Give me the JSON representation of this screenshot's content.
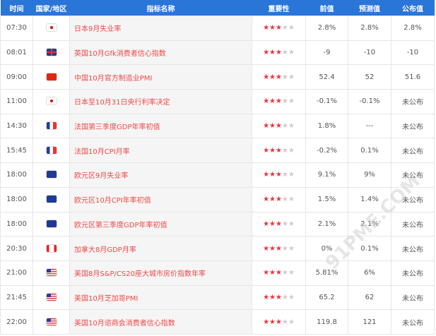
{
  "headers": [
    "时间",
    "国家/地区",
    "指标名称",
    "重要性",
    "前值",
    "预测值",
    "公布值"
  ],
  "colors": {
    "header": "#2a75d8",
    "name": "#f04848",
    "star_on": "#f0303a",
    "star_off": "#cccccc"
  },
  "watermark": "91PME.COM 汇金网",
  "rows": [
    {
      "time": "07:30",
      "flag": "japan",
      "name": "日本9月失业率",
      "stars": 3,
      "prev": "2.8%",
      "forecast": "2.8%",
      "actual": "2.8%"
    },
    {
      "time": "08:01",
      "flag": "uk",
      "name": "英国10月Gfk消费者信心指数",
      "stars": 3,
      "prev": "-9",
      "forecast": "-10",
      "actual": "-10"
    },
    {
      "time": "09:00",
      "flag": "china",
      "name": "中国10月官方制造业PMI",
      "stars": 3,
      "prev": "52.4",
      "forecast": "52",
      "actual": "51.6"
    },
    {
      "time": "11:00",
      "flag": "japan",
      "name": "日本至10月31日央行利率决定",
      "stars": 3,
      "prev": "-0.1%",
      "forecast": "-0.1%",
      "actual": "未公布"
    },
    {
      "time": "14:30",
      "flag": "france",
      "name": "法国第三季度GDP年率初值",
      "stars": 3,
      "prev": "1.8%",
      "forecast": "---",
      "actual": "未公布"
    },
    {
      "time": "15:45",
      "flag": "france",
      "name": "法国10月CPI月率",
      "stars": 3,
      "prev": "-0.2%",
      "forecast": "0.1%",
      "actual": "未公布"
    },
    {
      "time": "18:00",
      "flag": "eu",
      "name": "欧元区9月失业率",
      "stars": 3,
      "prev": "9.1%",
      "forecast": "9%",
      "actual": "未公布"
    },
    {
      "time": "18:00",
      "flag": "eu",
      "name": "欧元区10月CPI年率初值",
      "stars": 3,
      "prev": "1.5%",
      "forecast": "1.4%",
      "actual": "未公布"
    },
    {
      "time": "18:00",
      "flag": "eu",
      "name": "欧元区第三季度GDP年率初值",
      "stars": 3,
      "prev": "2.1%",
      "forecast": "2.1%",
      "actual": "未公布"
    },
    {
      "time": "20:30",
      "flag": "canada",
      "name": "加拿大8月GDP月率",
      "stars": 3,
      "prev": "0%",
      "forecast": "0.1%",
      "actual": "未公布"
    },
    {
      "time": "21:00",
      "flag": "usa",
      "name": "美国8月S&P/CS20座大城市房价指数年率",
      "stars": 3,
      "prev": "5.81%",
      "forecast": "6%",
      "actual": "未公布"
    },
    {
      "time": "21:45",
      "flag": "usa",
      "name": "美国10月芝加哥PMI",
      "stars": 3,
      "prev": "65.2",
      "forecast": "62",
      "actual": "未公布"
    },
    {
      "time": "22:00",
      "flag": "usa",
      "name": "美国10月谘商会消费者信心指数",
      "stars": 3,
      "prev": "119.8",
      "forecast": "121",
      "actual": "未公布"
    }
  ]
}
